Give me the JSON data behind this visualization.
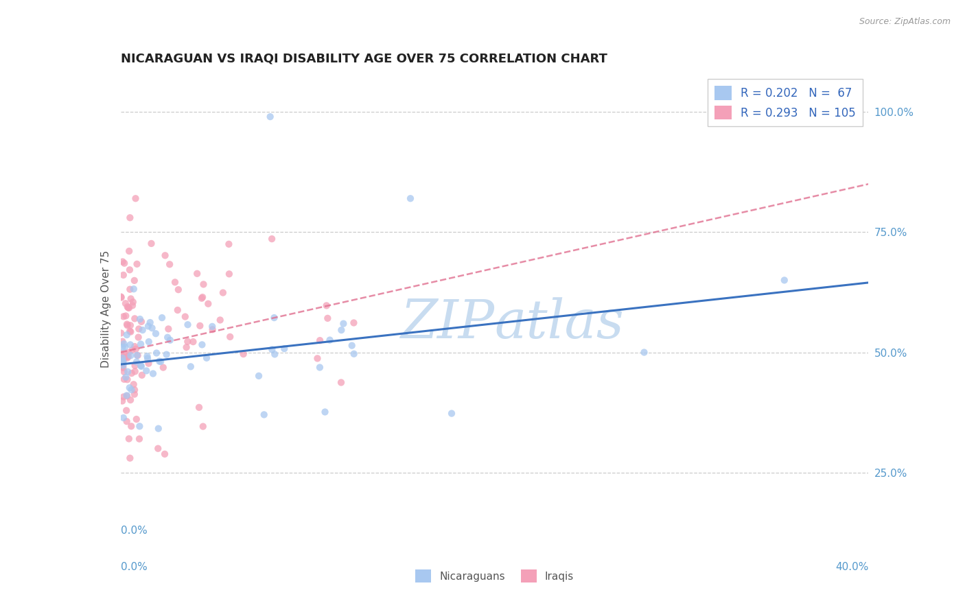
{
  "title": "NICARAGUAN VS IRAQI DISABILITY AGE OVER 75 CORRELATION CHART",
  "source_text": "Source: ZipAtlas.com",
  "ylabel": "Disability Age Over 75",
  "xmin": 0.0,
  "xmax": 0.4,
  "ymin": 0.1,
  "ymax": 1.08,
  "yticks": [
    0.25,
    0.5,
    0.75,
    1.0
  ],
  "ytick_labels": [
    "25.0%",
    "50.0%",
    "75.0%",
    "100.0%"
  ],
  "r_nicaraguan": 0.202,
  "n_nicaraguan": 67,
  "r_iraqi": 0.293,
  "n_iraqi": 105,
  "color_nicaraguan": "#A8C8F0",
  "color_iraqi": "#F4A0B8",
  "trendline_nicaraguan_color": "#3A72C0",
  "trendline_iraqi_color": "#E07090",
  "background_color": "#FFFFFF",
  "grid_color": "#CCCCCC",
  "title_fontsize": 13,
  "axis_label_color": "#5599CC",
  "watermark_color": "#C8DCF0",
  "legend_text_color": "#3366BB"
}
